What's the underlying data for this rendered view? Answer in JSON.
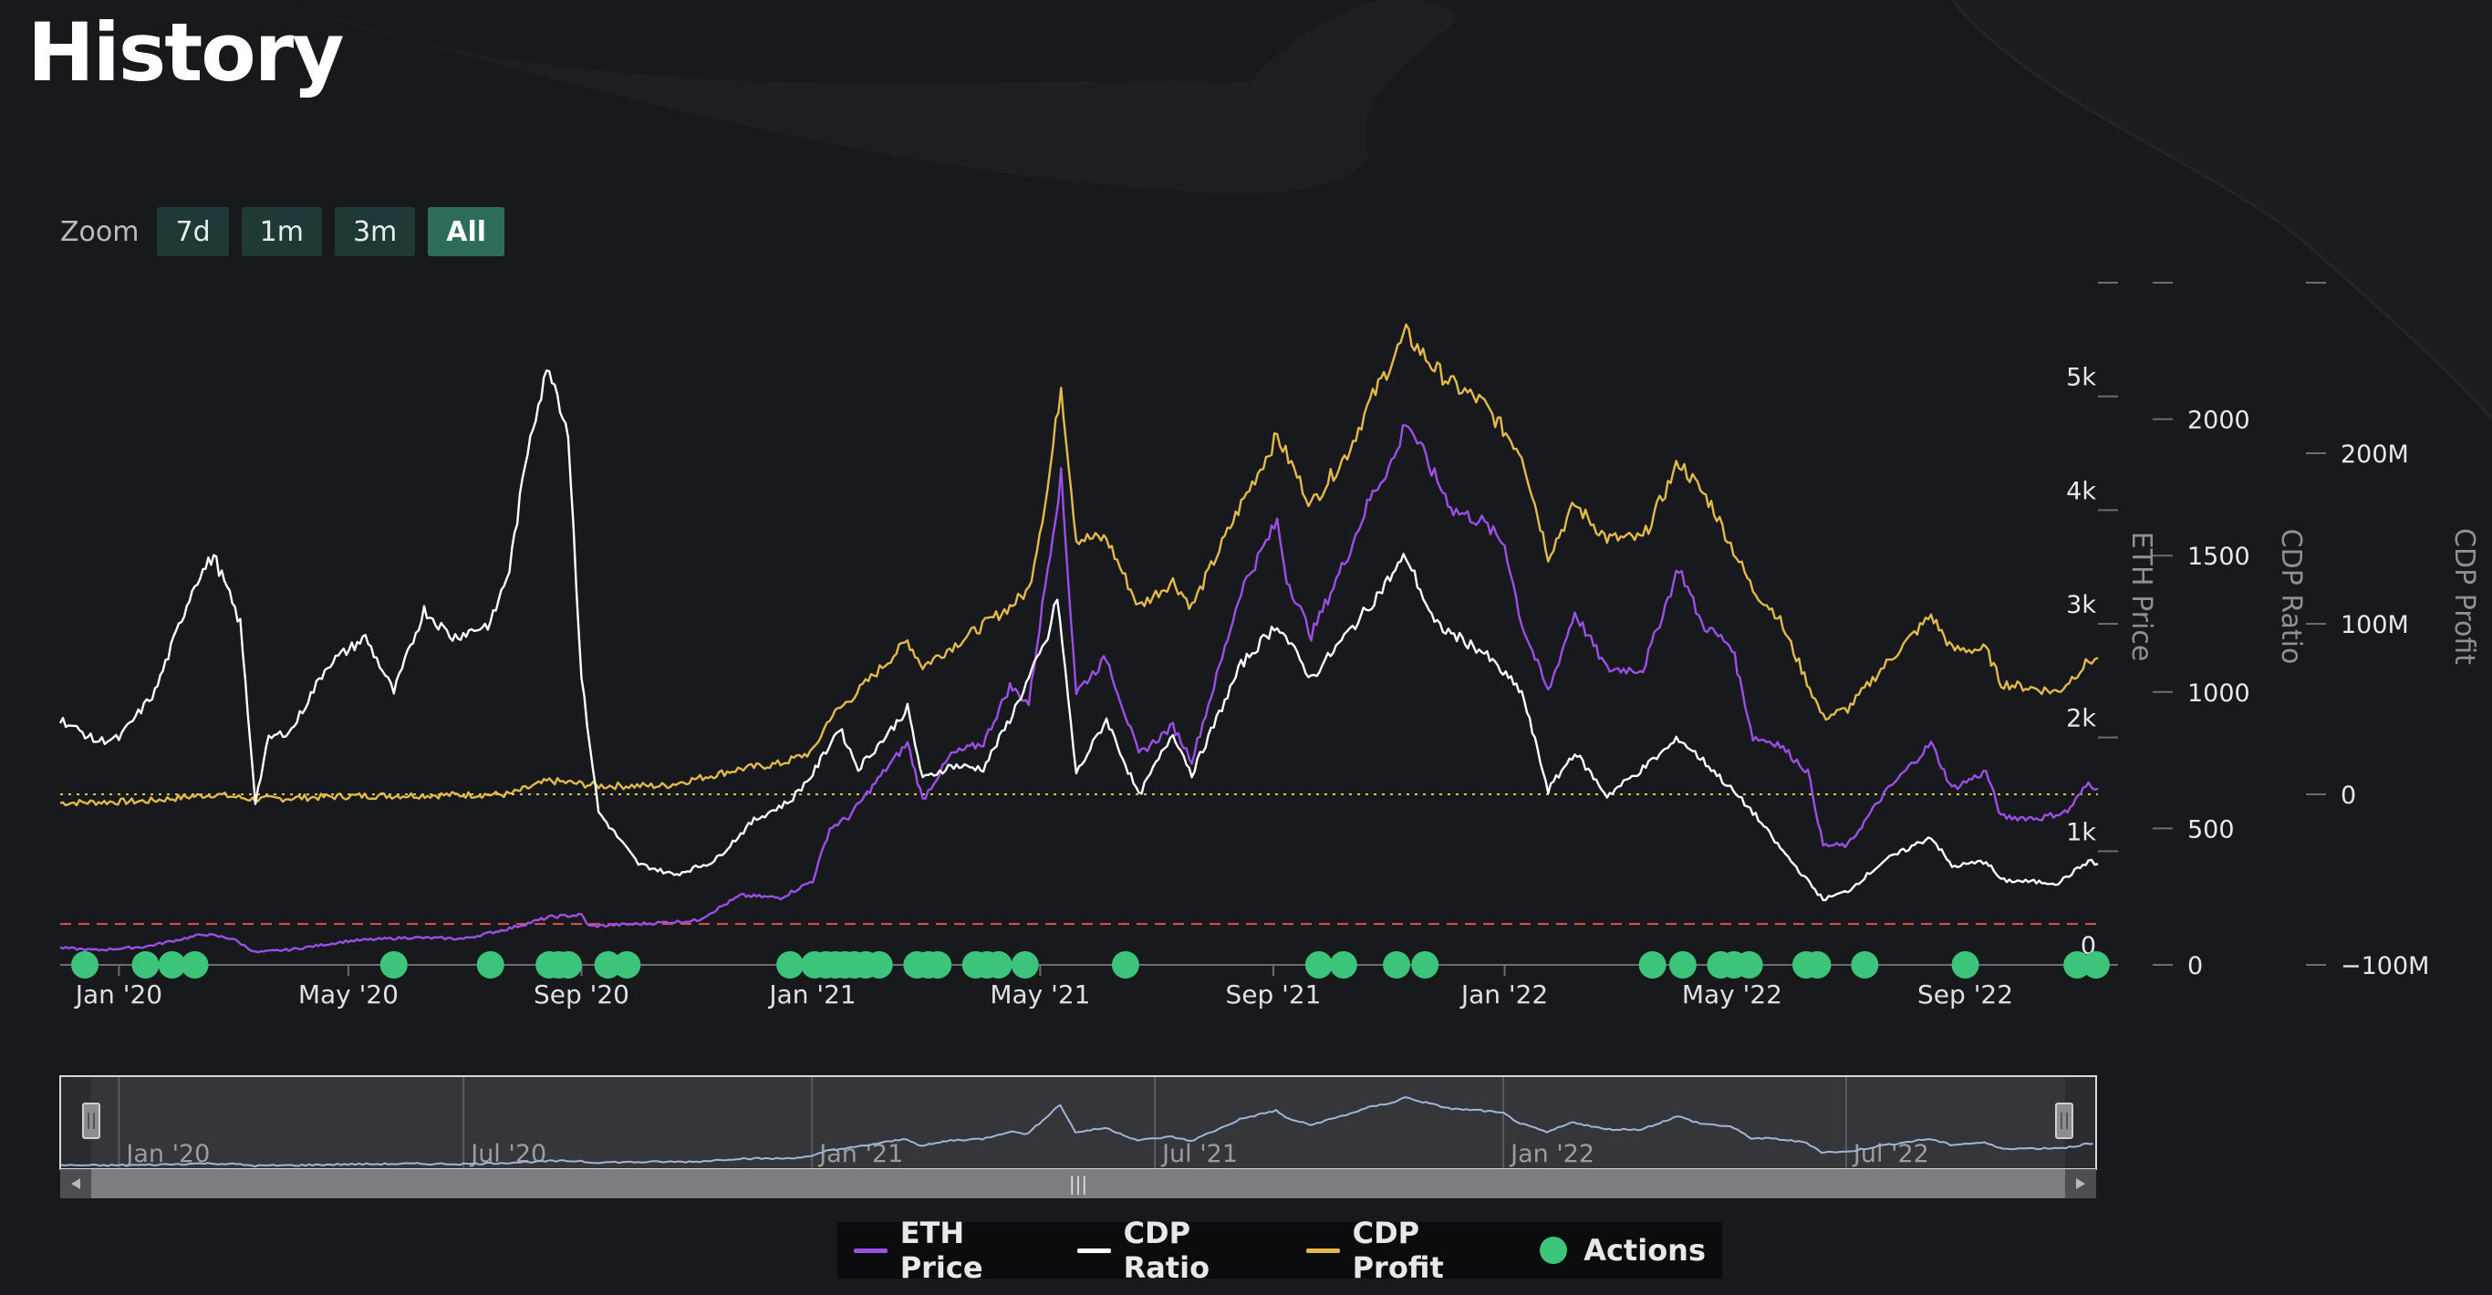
{
  "page": {
    "title": "History"
  },
  "zoom": {
    "label": "Zoom",
    "buttons": [
      {
        "label": "7d",
        "active": false
      },
      {
        "label": "1m",
        "active": false
      },
      {
        "label": "3m",
        "active": false
      },
      {
        "label": "All",
        "active": true
      }
    ]
  },
  "legend": [
    {
      "label": "ETH Price",
      "color": "#9b4fe6",
      "kind": "line"
    },
    {
      "label": "CDP Ratio",
      "color": "#ffffff",
      "kind": "line"
    },
    {
      "label": "CDP Profit",
      "color": "#e2b94a",
      "kind": "line"
    },
    {
      "label": "Actions",
      "color": "#3cc47a",
      "kind": "dot"
    }
  ],
  "chart_data": {
    "type": "line",
    "x_range": [
      "2019-12-01",
      "2022-11-10"
    ],
    "x_ticks": [
      "Jan '20",
      "May '20",
      "Sep '20",
      "Jan '21",
      "May '21",
      "Sep '21",
      "Jan '22",
      "May '22",
      "Sep '22"
    ],
    "axes": {
      "eth_price": {
        "label": "ETH Price",
        "range": [
          0,
          6000
        ],
        "ticks": [
          "0",
          "1k",
          "2k",
          "3k",
          "4k",
          "5k"
        ]
      },
      "cdp_ratio": {
        "label": "CDP Ratio",
        "range": [
          0,
          2500
        ],
        "ticks": [
          "0",
          "500",
          "1000",
          "1500",
          "2000"
        ]
      },
      "cdp_profit": {
        "label": "CDP Profit",
        "range": [
          -100000000,
          300000000
        ],
        "ticks": [
          "−100M",
          "0",
          "100M",
          "200M"
        ]
      }
    },
    "reference_lines": [
      {
        "axis": "cdp_profit",
        "value": 0,
        "color": "#d8c84a",
        "style": "dotted"
      },
      {
        "axis": "cdp_ratio",
        "value": 150,
        "color": "#e0524e",
        "style": "dashed"
      }
    ],
    "series": [
      {
        "name": "ETH Price",
        "axis": "eth_price",
        "color": "#9b4fe6",
        "points": [
          [
            "2019-12-01",
            150
          ],
          [
            "2019-12-20",
            130
          ],
          [
            "2020-01-15",
            160
          ],
          [
            "2020-02-15",
            270
          ],
          [
            "2020-03-01",
            230
          ],
          [
            "2020-03-13",
            110
          ],
          [
            "2020-04-01",
            135
          ],
          [
            "2020-05-01",
            210
          ],
          [
            "2020-06-01",
            240
          ],
          [
            "2020-07-01",
            230
          ],
          [
            "2020-07-25",
            320
          ],
          [
            "2020-08-15",
            420
          ],
          [
            "2020-09-01",
            440
          ],
          [
            "2020-09-05",
            340
          ],
          [
            "2020-10-01",
            360
          ],
          [
            "2020-11-01",
            390
          ],
          [
            "2020-11-24",
            610
          ],
          [
            "2020-12-15",
            590
          ],
          [
            "2021-01-01",
            740
          ],
          [
            "2021-01-10",
            1200
          ],
          [
            "2021-01-20",
            1300
          ],
          [
            "2021-02-10",
            1750
          ],
          [
            "2021-02-20",
            1950
          ],
          [
            "2021-02-28",
            1450
          ],
          [
            "2021-03-15",
            1850
          ],
          [
            "2021-04-01",
            1950
          ],
          [
            "2021-04-15",
            2450
          ],
          [
            "2021-04-25",
            2300
          ],
          [
            "2021-05-05",
            3500
          ],
          [
            "2021-05-12",
            4300
          ],
          [
            "2021-05-20",
            2400
          ],
          [
            "2021-06-05",
            2700
          ],
          [
            "2021-06-22",
            1850
          ],
          [
            "2021-07-10",
            2100
          ],
          [
            "2021-07-20",
            1800
          ],
          [
            "2021-08-05",
            2700
          ],
          [
            "2021-08-15",
            3300
          ],
          [
            "2021-09-03",
            3900
          ],
          [
            "2021-09-08",
            3400
          ],
          [
            "2021-09-21",
            2900
          ],
          [
            "2021-10-10",
            3600
          ],
          [
            "2021-10-22",
            4100
          ],
          [
            "2021-11-05",
            4500
          ],
          [
            "2021-11-10",
            4800
          ],
          [
            "2021-11-25",
            4300
          ],
          [
            "2021-12-05",
            4000
          ],
          [
            "2021-12-20",
            3900
          ],
          [
            "2022-01-01",
            3700
          ],
          [
            "2022-01-10",
            3000
          ],
          [
            "2022-01-24",
            2400
          ],
          [
            "2022-02-07",
            3100
          ],
          [
            "2022-02-24",
            2600
          ],
          [
            "2022-03-15",
            2600
          ],
          [
            "2022-04-03",
            3500
          ],
          [
            "2022-04-15",
            3000
          ],
          [
            "2022-05-01",
            2800
          ],
          [
            "2022-05-12",
            2000
          ],
          [
            "2022-05-25",
            1950
          ],
          [
            "2022-06-10",
            1700
          ],
          [
            "2022-06-18",
            1050
          ],
          [
            "2022-07-01",
            1050
          ],
          [
            "2022-07-20",
            1500
          ],
          [
            "2022-08-14",
            1950
          ],
          [
            "2022-08-25",
            1550
          ],
          [
            "2022-09-12",
            1700
          ],
          [
            "2022-09-20",
            1300
          ],
          [
            "2022-10-10",
            1290
          ],
          [
            "2022-10-25",
            1350
          ],
          [
            "2022-11-05",
            1600
          ],
          [
            "2022-11-10",
            1550
          ]
        ]
      },
      {
        "name": "CDP Ratio",
        "axis": "cdp_ratio",
        "color": "#ffffff",
        "points": [
          [
            "2019-12-01",
            900
          ],
          [
            "2019-12-20",
            820
          ],
          [
            "2020-01-01",
            830
          ],
          [
            "2020-01-20",
            1000
          ],
          [
            "2020-02-10",
            1400
          ],
          [
            "2020-02-20",
            1500
          ],
          [
            "2020-03-05",
            1250
          ],
          [
            "2020-03-13",
            600
          ],
          [
            "2020-03-20",
            830
          ],
          [
            "2020-04-01",
            860
          ],
          [
            "2020-04-20",
            1100
          ],
          [
            "2020-05-10",
            1200
          ],
          [
            "2020-05-25",
            1000
          ],
          [
            "2020-06-10",
            1300
          ],
          [
            "2020-06-25",
            1200
          ],
          [
            "2020-07-15",
            1250
          ],
          [
            "2020-07-25",
            1450
          ],
          [
            "2020-08-05",
            1950
          ],
          [
            "2020-08-15",
            2200
          ],
          [
            "2020-08-25",
            1950
          ],
          [
            "2020-09-01",
            1050
          ],
          [
            "2020-09-10",
            560
          ],
          [
            "2020-10-01",
            370
          ],
          [
            "2020-10-20",
            330
          ],
          [
            "2020-11-10",
            380
          ],
          [
            "2020-12-01",
            530
          ],
          [
            "2020-12-20",
            600
          ],
          [
            "2021-01-01",
            700
          ],
          [
            "2021-01-15",
            870
          ],
          [
            "2021-01-25",
            720
          ],
          [
            "2021-02-10",
            850
          ],
          [
            "2021-02-20",
            940
          ],
          [
            "2021-02-28",
            680
          ],
          [
            "2021-03-15",
            730
          ],
          [
            "2021-04-01",
            720
          ],
          [
            "2021-04-15",
            900
          ],
          [
            "2021-05-05",
            1200
          ],
          [
            "2021-05-10",
            1350
          ],
          [
            "2021-05-20",
            700
          ],
          [
            "2021-06-05",
            900
          ],
          [
            "2021-06-22",
            620
          ],
          [
            "2021-07-10",
            850
          ],
          [
            "2021-07-20",
            700
          ],
          [
            "2021-08-15",
            1100
          ],
          [
            "2021-09-03",
            1250
          ],
          [
            "2021-09-21",
            1050
          ],
          [
            "2021-10-20",
            1300
          ],
          [
            "2021-11-10",
            1500
          ],
          [
            "2021-11-25",
            1250
          ],
          [
            "2021-12-20",
            1150
          ],
          [
            "2022-01-10",
            1000
          ],
          [
            "2022-01-24",
            640
          ],
          [
            "2022-02-07",
            780
          ],
          [
            "2022-02-24",
            620
          ],
          [
            "2022-03-15",
            720
          ],
          [
            "2022-04-03",
            830
          ],
          [
            "2022-04-20",
            720
          ],
          [
            "2022-05-12",
            560
          ],
          [
            "2022-05-25",
            440
          ],
          [
            "2022-06-18",
            240
          ],
          [
            "2022-07-01",
            270
          ],
          [
            "2022-07-20",
            380
          ],
          [
            "2022-08-14",
            470
          ],
          [
            "2022-08-25",
            360
          ],
          [
            "2022-09-12",
            380
          ],
          [
            "2022-09-20",
            310
          ],
          [
            "2022-10-20",
            300
          ],
          [
            "2022-11-05",
            380
          ],
          [
            "2022-11-10",
            370
          ]
        ]
      },
      {
        "name": "CDP Profit",
        "axis": "cdp_profit",
        "color": "#e2b94a",
        "points": [
          [
            "2019-12-01",
            -5000000
          ],
          [
            "2020-01-15",
            -4000000
          ],
          [
            "2020-02-20",
            0
          ],
          [
            "2020-03-13",
            -3000000
          ],
          [
            "2020-05-01",
            -1000000
          ],
          [
            "2020-07-25",
            0
          ],
          [
            "2020-08-15",
            8000000
          ],
          [
            "2020-09-10",
            5000000
          ],
          [
            "2020-10-15",
            5000000
          ],
          [
            "2020-11-24",
            15000000
          ],
          [
            "2020-12-15",
            18000000
          ],
          [
            "2021-01-01",
            25000000
          ],
          [
            "2021-01-10",
            45000000
          ],
          [
            "2021-01-20",
            55000000
          ],
          [
            "2021-02-20",
            90000000
          ],
          [
            "2021-02-28",
            75000000
          ],
          [
            "2021-03-20",
            90000000
          ],
          [
            "2021-04-15",
            110000000
          ],
          [
            "2021-04-25",
            120000000
          ],
          [
            "2021-05-05",
            180000000
          ],
          [
            "2021-05-12",
            240000000
          ],
          [
            "2021-05-20",
            150000000
          ],
          [
            "2021-06-05",
            150000000
          ],
          [
            "2021-06-22",
            110000000
          ],
          [
            "2021-07-10",
            125000000
          ],
          [
            "2021-07-20",
            110000000
          ],
          [
            "2021-08-15",
            170000000
          ],
          [
            "2021-09-03",
            210000000
          ],
          [
            "2021-09-21",
            170000000
          ],
          [
            "2021-10-10",
            200000000
          ],
          [
            "2021-10-22",
            230000000
          ],
          [
            "2021-11-10",
            270000000
          ],
          [
            "2021-11-25",
            250000000
          ],
          [
            "2021-12-05",
            240000000
          ],
          [
            "2021-12-20",
            230000000
          ],
          [
            "2022-01-10",
            200000000
          ],
          [
            "2022-01-24",
            140000000
          ],
          [
            "2022-02-07",
            170000000
          ],
          [
            "2022-02-24",
            150000000
          ],
          [
            "2022-03-15",
            150000000
          ],
          [
            "2022-04-03",
            195000000
          ],
          [
            "2022-04-20",
            170000000
          ],
          [
            "2022-05-12",
            120000000
          ],
          [
            "2022-05-25",
            105000000
          ],
          [
            "2022-06-18",
            45000000
          ],
          [
            "2022-07-01",
            50000000
          ],
          [
            "2022-07-20",
            75000000
          ],
          [
            "2022-08-14",
            105000000
          ],
          [
            "2022-08-25",
            85000000
          ],
          [
            "2022-09-12",
            85000000
          ],
          [
            "2022-09-20",
            65000000
          ],
          [
            "2022-10-20",
            60000000
          ],
          [
            "2022-11-05",
            78000000
          ],
          [
            "2022-11-10",
            80000000
          ]
        ]
      }
    ],
    "actions": [
      "2019-12-14",
      "2020-01-15",
      "2020-01-29",
      "2020-02-10",
      "2020-05-25",
      "2020-07-15",
      "2020-08-15",
      "2020-08-20",
      "2020-08-25",
      "2020-09-15",
      "2020-09-25",
      "2020-12-20",
      "2021-01-02",
      "2021-01-08",
      "2021-01-13",
      "2021-01-18",
      "2021-01-23",
      "2021-01-29",
      "2021-02-05",
      "2021-02-25",
      "2021-03-03",
      "2021-03-08",
      "2021-03-28",
      "2021-04-03",
      "2021-04-09",
      "2021-04-23",
      "2021-06-15",
      "2021-09-25",
      "2021-10-08",
      "2021-11-05",
      "2021-11-20",
      "2022-03-20",
      "2022-04-05",
      "2022-04-25",
      "2022-05-02",
      "2022-05-10",
      "2022-06-09",
      "2022-06-15",
      "2022-07-10",
      "2022-09-01",
      "2022-10-30",
      "2022-11-09"
    ],
    "navigator": {
      "x_ticks": [
        "Jan '20",
        "Jul '20",
        "Jan '21",
        "Jul '21",
        "Jan '22",
        "Jul '22"
      ]
    }
  }
}
